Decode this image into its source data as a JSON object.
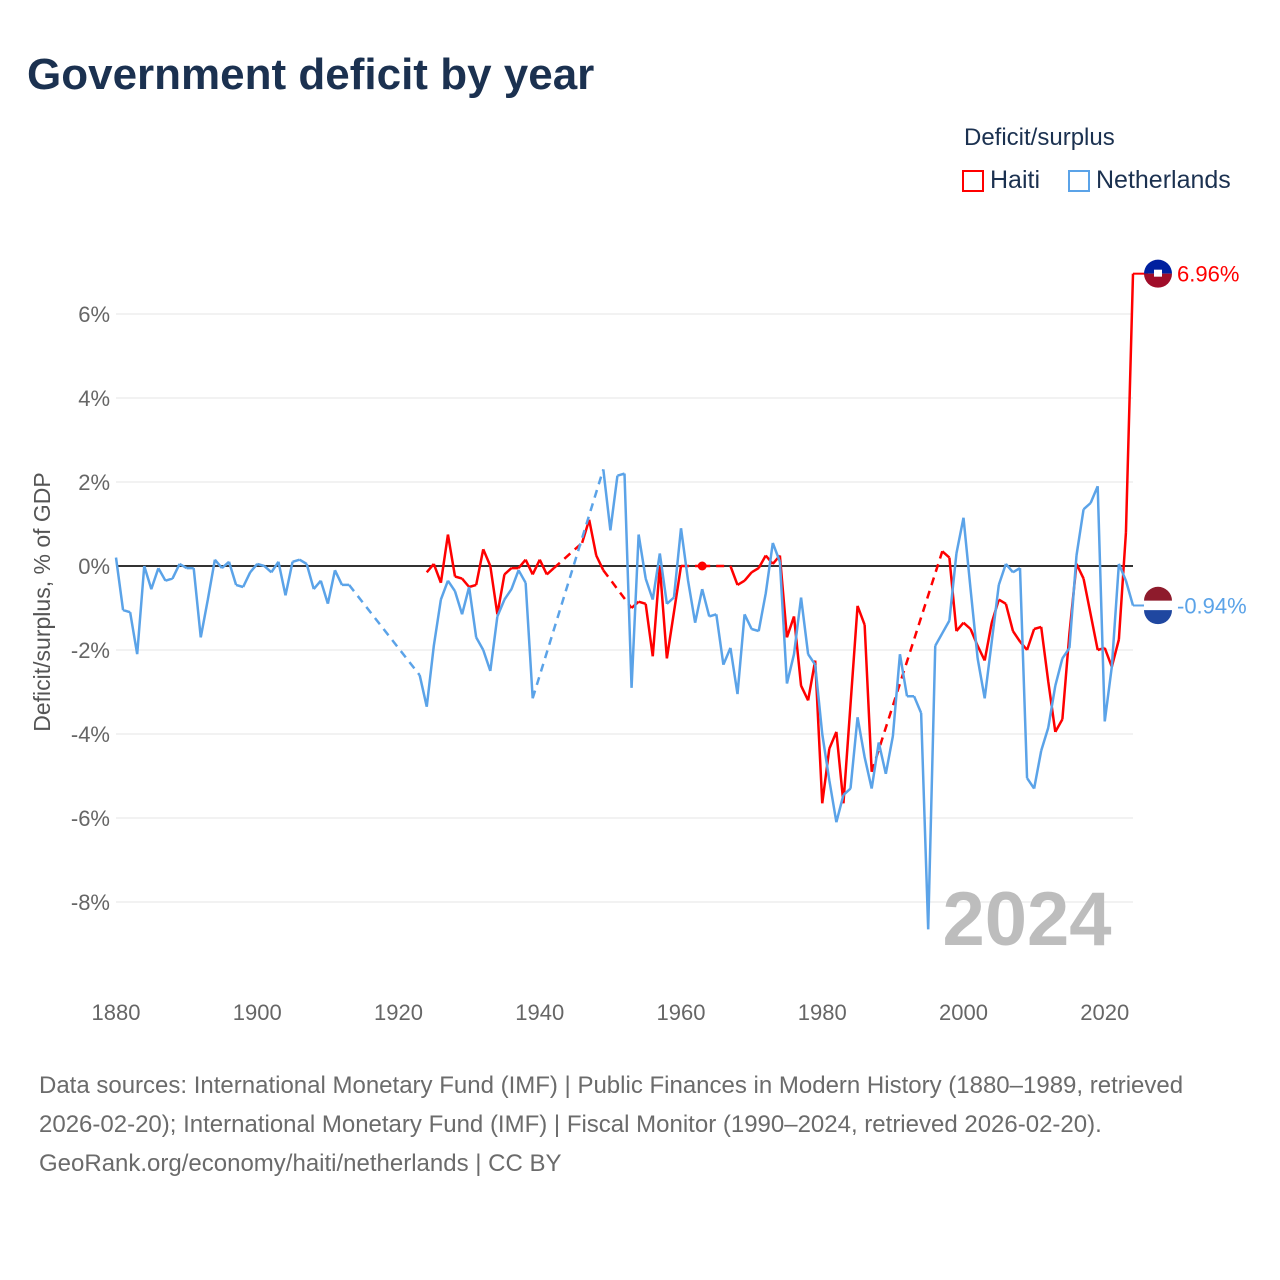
{
  "title": "Government deficit by year",
  "legend": {
    "title": "Deficit/surplus",
    "items": [
      {
        "name": "Haiti",
        "color": "#ff0000"
      },
      {
        "name": "Netherlands",
        "color": "#5ba3e8"
      }
    ]
  },
  "footer": {
    "sources": "Data sources: International Monetary Fund (IMF) | Public Finances in Modern History (1880–1989, retrieved 2026-02-20); International Monetary Fund (IMF) | Fiscal Monitor (1990–2024, retrieved 2026-02-20).",
    "credit": "GeoRank.org/economy/haiti/netherlands | CC BY"
  },
  "chart_data": {
    "type": "line",
    "title": "Government deficit by year",
    "xlabel": "",
    "ylabel": "Deficit/surplus, % of GDP",
    "xlim": [
      1880,
      2024
    ],
    "ylim": [
      -10,
      7.5
    ],
    "x_ticks": [
      "1880",
      "1900",
      "1920",
      "1940",
      "1960",
      "1980",
      "2000",
      "2020"
    ],
    "y_ticks": [
      "-8%",
      "-6%",
      "-4%",
      "-2%",
      "0%",
      "2%",
      "4%",
      "6%"
    ],
    "y_tick_values": [
      -8,
      -6,
      -4,
      -2,
      0,
      2,
      4,
      6
    ],
    "year_label": "2024",
    "grid": true,
    "legend_position": "top-right",
    "end_labels": {
      "Haiti": "6.96%",
      "Netherlands": "-0.94%"
    },
    "series": [
      {
        "name": "Haiti",
        "color": "#ff0000",
        "points": [
          [
            1924,
            -0.15
          ],
          [
            1925,
            0.05
          ],
          [
            1926,
            -0.4
          ],
          [
            1927,
            0.75
          ],
          [
            1928,
            -0.25
          ],
          [
            1929,
            -0.3
          ],
          [
            1930,
            -0.5
          ],
          [
            1931,
            -0.45
          ],
          [
            1932,
            0.4
          ],
          [
            1933,
            0.0
          ],
          [
            1934,
            -1.15
          ],
          [
            1935,
            -0.2
          ],
          [
            1936,
            -0.05
          ],
          [
            1937,
            -0.05
          ],
          [
            1938,
            0.15
          ],
          [
            1939,
            -0.2
          ],
          [
            1940,
            0.15
          ],
          [
            1941,
            -0.2
          ],
          [
            1942,
            -0.05
          ],
          [
            1946,
            0.55
          ],
          [
            1947,
            1.1
          ],
          [
            1948,
            0.25
          ],
          [
            1949,
            -0.1
          ],
          [
            1953,
            -1.0
          ],
          [
            1954,
            -0.85
          ],
          [
            1955,
            -0.9
          ],
          [
            1956,
            -2.15
          ],
          [
            1957,
            0.0
          ],
          [
            1958,
            -2.2
          ],
          [
            1959,
            -1.1
          ],
          [
            1960,
            0.0
          ],
          [
            1963,
            0.0
          ],
          [
            1967,
            0.0
          ],
          [
            1968,
            -0.45
          ],
          [
            1969,
            -0.35
          ],
          [
            1970,
            -0.15
          ],
          [
            1971,
            -0.05
          ],
          [
            1972,
            0.25
          ],
          [
            1973,
            0.05
          ],
          [
            1974,
            0.25
          ],
          [
            1975,
            -1.7
          ],
          [
            1976,
            -1.2
          ],
          [
            1977,
            -2.85
          ],
          [
            1978,
            -3.2
          ],
          [
            1979,
            -2.25
          ],
          [
            1980,
            -5.65
          ],
          [
            1981,
            -4.35
          ],
          [
            1982,
            -3.95
          ],
          [
            1983,
            -5.65
          ],
          [
            1984,
            -3.3
          ],
          [
            1985,
            -0.95
          ],
          [
            1986,
            -1.4
          ],
          [
            1987,
            -4.9
          ],
          [
            1997,
            0.35
          ],
          [
            1998,
            0.2
          ],
          [
            1999,
            -1.55
          ],
          [
            2000,
            -1.35
          ],
          [
            2001,
            -1.5
          ],
          [
            2002,
            -1.9
          ],
          [
            2003,
            -2.25
          ],
          [
            2004,
            -1.35
          ],
          [
            2005,
            -0.8
          ],
          [
            2006,
            -0.9
          ],
          [
            2007,
            -1.55
          ],
          [
            2008,
            -1.8
          ],
          [
            2009,
            -2.0
          ],
          [
            2010,
            -1.5
          ],
          [
            2011,
            -1.45
          ],
          [
            2012,
            -2.75
          ],
          [
            2013,
            -3.95
          ],
          [
            2014,
            -3.65
          ],
          [
            2015,
            -1.6
          ],
          [
            2016,
            0.05
          ],
          [
            2017,
            -0.3
          ],
          [
            2018,
            -1.15
          ],
          [
            2019,
            -2.0
          ],
          [
            2020,
            -1.95
          ],
          [
            2021,
            -2.4
          ],
          [
            2022,
            -1.75
          ],
          [
            2023,
            0.8
          ],
          [
            2024,
            6.96
          ]
        ]
      },
      {
        "name": "Netherlands",
        "color": "#5ba3e8",
        "points": [
          [
            1880,
            0.2
          ],
          [
            1881,
            -1.05
          ],
          [
            1882,
            -1.1
          ],
          [
            1883,
            -2.1
          ],
          [
            1884,
            0.0
          ],
          [
            1885,
            -0.55
          ],
          [
            1886,
            -0.05
          ],
          [
            1887,
            -0.35
          ],
          [
            1888,
            -0.3
          ],
          [
            1889,
            0.05
          ],
          [
            1890,
            -0.05
          ],
          [
            1891,
            -0.05
          ],
          [
            1892,
            -1.7
          ],
          [
            1893,
            -0.8
          ],
          [
            1894,
            0.15
          ],
          [
            1895,
            -0.05
          ],
          [
            1896,
            0.1
          ],
          [
            1897,
            -0.45
          ],
          [
            1898,
            -0.5
          ],
          [
            1899,
            -0.15
          ],
          [
            1900,
            0.05
          ],
          [
            1901,
            0.0
          ],
          [
            1902,
            -0.15
          ],
          [
            1903,
            0.1
          ],
          [
            1904,
            -0.7
          ],
          [
            1905,
            0.1
          ],
          [
            1906,
            0.15
          ],
          [
            1907,
            0.05
          ],
          [
            1908,
            -0.55
          ],
          [
            1909,
            -0.35
          ],
          [
            1910,
            -0.9
          ],
          [
            1911,
            -0.1
          ],
          [
            1912,
            -0.45
          ],
          [
            1913,
            -0.45
          ],
          [
            1923,
            -2.6
          ],
          [
            1924,
            -3.35
          ],
          [
            1925,
            -1.9
          ],
          [
            1926,
            -0.8
          ],
          [
            1927,
            -0.35
          ],
          [
            1928,
            -0.6
          ],
          [
            1929,
            -1.15
          ],
          [
            1930,
            -0.5
          ],
          [
            1931,
            -1.7
          ],
          [
            1932,
            -2.0
          ],
          [
            1933,
            -2.5
          ],
          [
            1934,
            -1.2
          ],
          [
            1935,
            -0.8
          ],
          [
            1936,
            -0.55
          ],
          [
            1937,
            -0.1
          ],
          [
            1938,
            -0.4
          ],
          [
            1939,
            -3.15
          ],
          [
            1949,
            2.3
          ],
          [
            1950,
            0.85
          ],
          [
            1951,
            2.15
          ],
          [
            1952,
            2.2
          ],
          [
            1953,
            -2.9
          ],
          [
            1954,
            0.75
          ],
          [
            1955,
            -0.3
          ],
          [
            1956,
            -0.8
          ],
          [
            1957,
            0.3
          ],
          [
            1958,
            -0.9
          ],
          [
            1959,
            -0.75
          ],
          [
            1960,
            0.9
          ],
          [
            1961,
            -0.35
          ],
          [
            1962,
            -1.35
          ],
          [
            1963,
            -0.55
          ],
          [
            1964,
            -1.2
          ],
          [
            1965,
            -1.15
          ],
          [
            1966,
            -2.35
          ],
          [
            1967,
            -1.95
          ],
          [
            1968,
            -3.05
          ],
          [
            1969,
            -1.15
          ],
          [
            1970,
            -1.5
          ],
          [
            1971,
            -1.55
          ],
          [
            1972,
            -0.65
          ],
          [
            1973,
            0.55
          ],
          [
            1974,
            0.1
          ],
          [
            1975,
            -2.8
          ],
          [
            1976,
            -2.1
          ],
          [
            1977,
            -0.75
          ],
          [
            1978,
            -2.1
          ],
          [
            1979,
            -2.35
          ],
          [
            1980,
            -4.0
          ],
          [
            1981,
            -5.1
          ],
          [
            1982,
            -6.1
          ],
          [
            1983,
            -5.45
          ],
          [
            1984,
            -5.3
          ],
          [
            1985,
            -3.6
          ],
          [
            1986,
            -4.55
          ],
          [
            1987,
            -5.3
          ],
          [
            1988,
            -4.2
          ],
          [
            1989,
            -4.95
          ],
          [
            1990,
            -4.05
          ],
          [
            1991,
            -2.1
          ],
          [
            1992,
            -3.1
          ],
          [
            1993,
            -3.1
          ],
          [
            1994,
            -3.5
          ],
          [
            1995,
            -8.65
          ],
          [
            1996,
            -1.9
          ],
          [
            1997,
            -1.6
          ],
          [
            1998,
            -1.3
          ],
          [
            1999,
            0.3
          ],
          [
            2000,
            1.15
          ],
          [
            2001,
            -0.55
          ],
          [
            2002,
            -2.2
          ],
          [
            2003,
            -3.15
          ],
          [
            2004,
            -1.8
          ],
          [
            2005,
            -0.45
          ],
          [
            2006,
            0.05
          ],
          [
            2007,
            -0.15
          ],
          [
            2008,
            -0.05
          ],
          [
            2009,
            -5.05
          ],
          [
            2010,
            -5.3
          ],
          [
            2011,
            -4.4
          ],
          [
            2012,
            -3.85
          ],
          [
            2013,
            -2.85
          ],
          [
            2014,
            -2.2
          ],
          [
            2015,
            -1.95
          ],
          [
            2016,
            0.25
          ],
          [
            2017,
            1.35
          ],
          [
            2018,
            1.5
          ],
          [
            2019,
            1.9
          ],
          [
            2020,
            -3.7
          ],
          [
            2021,
            -2.4
          ],
          [
            2022,
            0.05
          ],
          [
            2023,
            -0.35
          ],
          [
            2024,
            -0.94
          ]
        ]
      }
    ]
  }
}
